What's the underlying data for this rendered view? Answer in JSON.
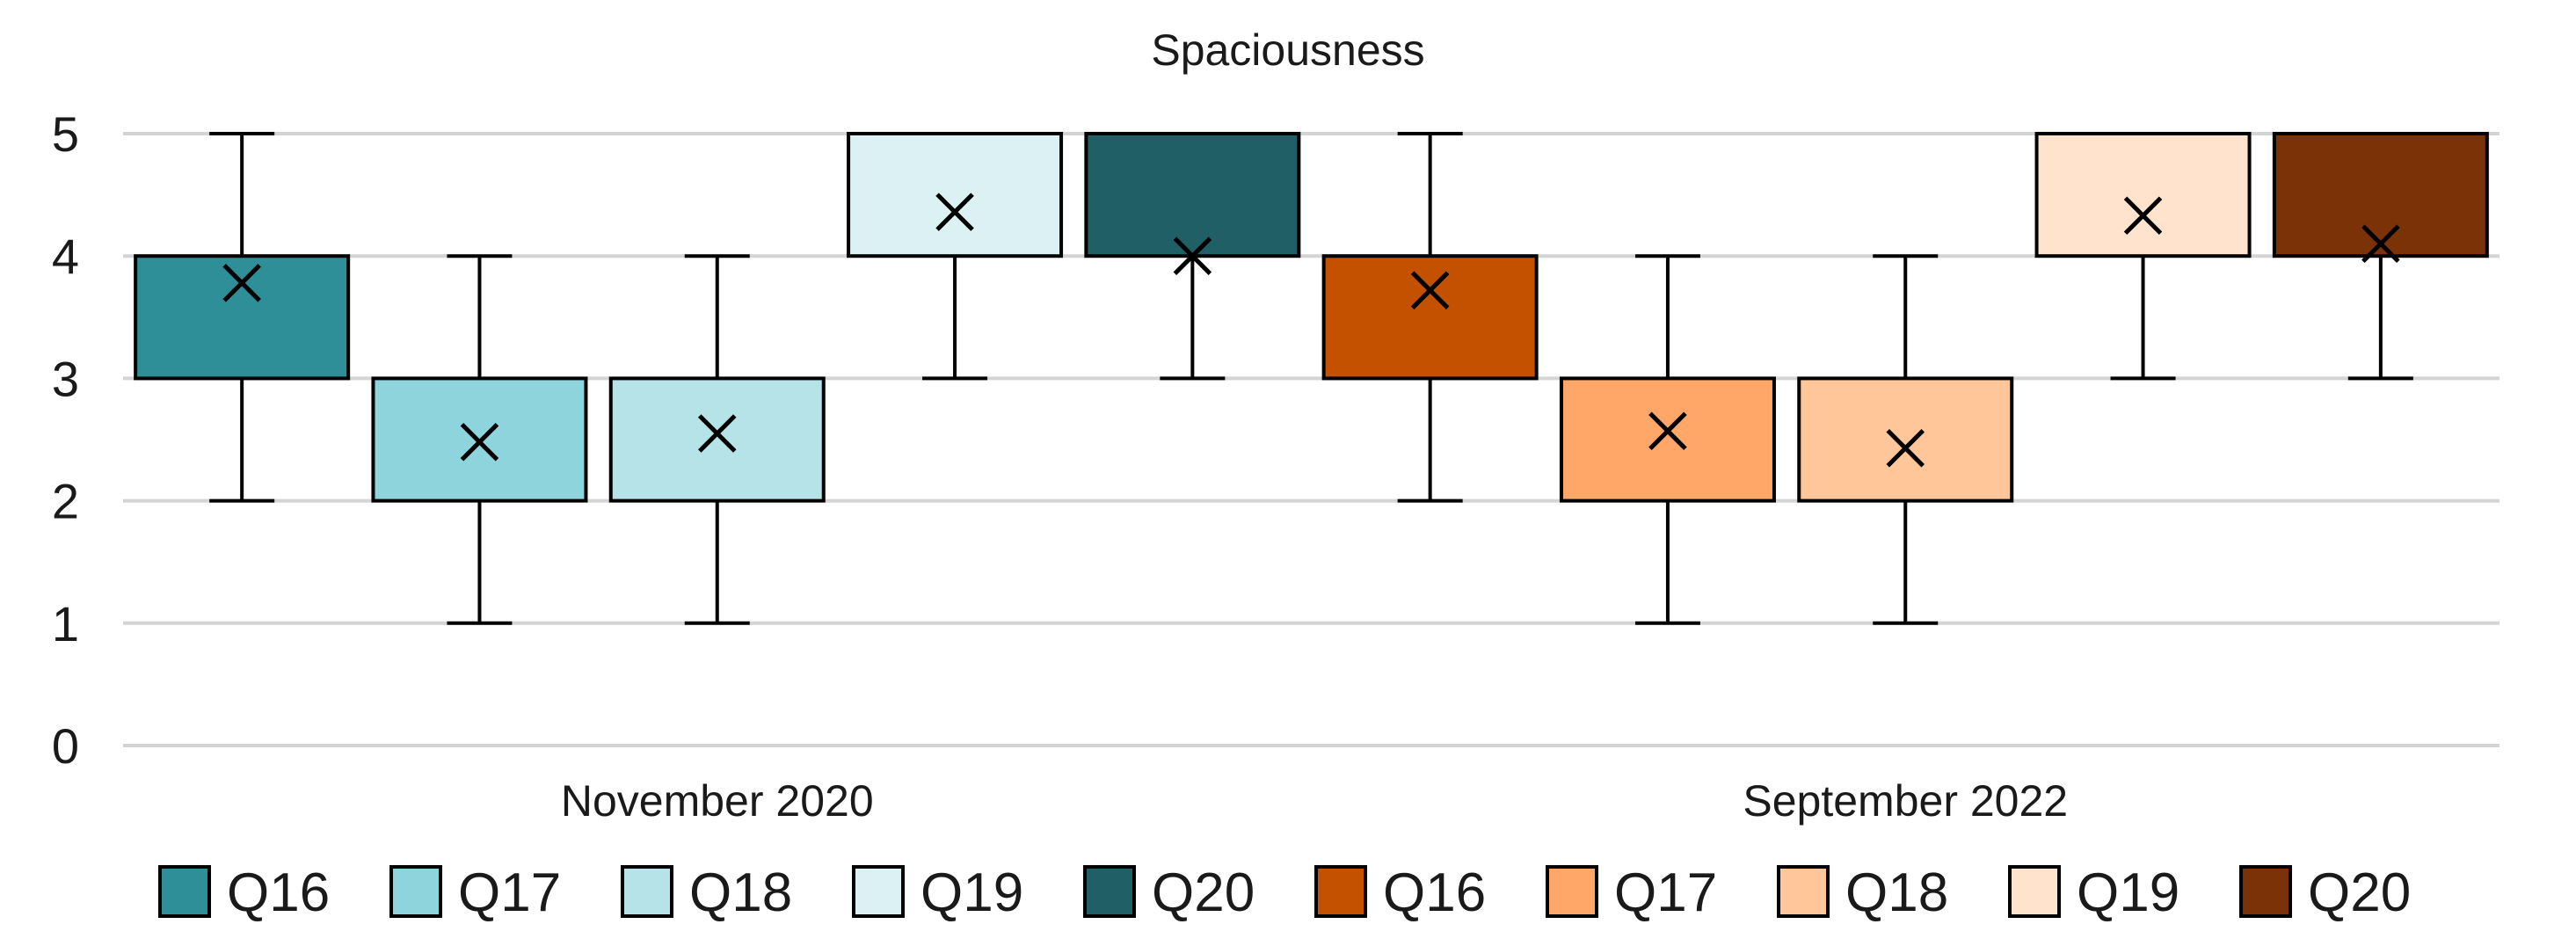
{
  "chart_data": {
    "type": "boxplot",
    "title": "Spaciousness",
    "xlabel": "",
    "ylabel": "",
    "ylim": [
      0,
      5
    ],
    "yticks": [
      0,
      1,
      2,
      3,
      4,
      5
    ],
    "grid": true,
    "legend_position": "bottom",
    "groups": [
      "November 2020",
      "September 2022"
    ],
    "series": [
      {
        "group": "November 2020",
        "name": "Q16",
        "color": "#2f8f98",
        "min": 2,
        "q1": 3,
        "median": 4,
        "q3": 4,
        "max": 5,
        "mean": 3.78
      },
      {
        "group": "November 2020",
        "name": "Q17",
        "color": "#8ed4dc",
        "min": 1,
        "q1": 2,
        "median": 2,
        "q3": 3,
        "max": 4,
        "mean": 2.48
      },
      {
        "group": "November 2020",
        "name": "Q18",
        "color": "#b5e3e8",
        "min": 1,
        "q1": 2,
        "median": 3,
        "q3": 3,
        "max": 4,
        "mean": 2.55
      },
      {
        "group": "November 2020",
        "name": "Q19",
        "color": "#dcf1f3",
        "min": 3,
        "q1": 4,
        "median": 4,
        "q3": 5,
        "max": 5,
        "mean": 4.36
      },
      {
        "group": "November 2020",
        "name": "Q20",
        "color": "#215f66",
        "min": 3,
        "q1": 4,
        "median": 4,
        "q3": 5,
        "max": 5,
        "mean": 4.0
      },
      {
        "group": "September 2022",
        "name": "Q16",
        "color": "#c35100",
        "min": 2,
        "q1": 3,
        "median": 4,
        "q3": 4,
        "max": 5,
        "mean": 3.72
      },
      {
        "group": "September 2022",
        "name": "Q17",
        "color": "#ffa768",
        "min": 1,
        "q1": 2,
        "median": 3,
        "q3": 3,
        "max": 4,
        "mean": 2.57
      },
      {
        "group": "September 2022",
        "name": "Q18",
        "color": "#ffc699",
        "min": 1,
        "q1": 2,
        "median": 2,
        "q3": 3,
        "max": 4,
        "mean": 2.43
      },
      {
        "group": "September 2022",
        "name": "Q19",
        "color": "#ffe3cc",
        "min": 3,
        "q1": 4,
        "median": 4,
        "q3": 5,
        "max": 5,
        "mean": 4.33
      },
      {
        "group": "September 2022",
        "name": "Q20",
        "color": "#7b3206",
        "min": 3,
        "q1": 4,
        "median": 4,
        "q3": 5,
        "max": 5,
        "mean": 4.1
      }
    ]
  }
}
